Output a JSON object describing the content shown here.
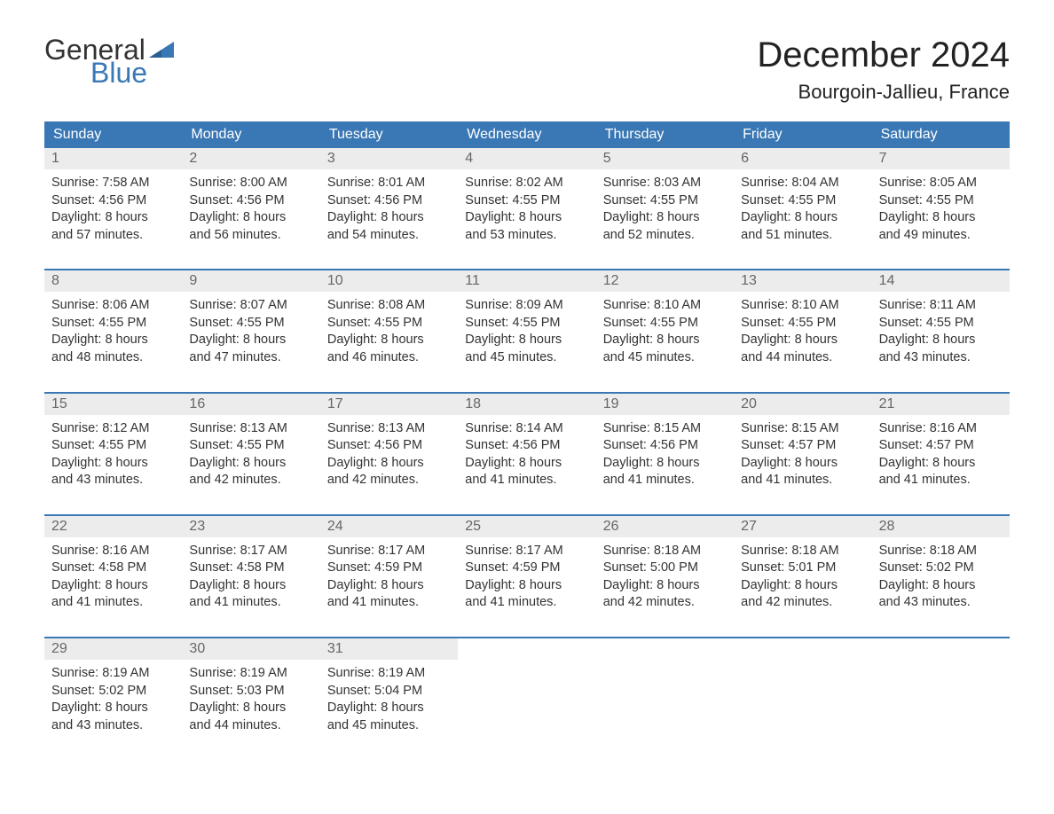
{
  "logo": {
    "text_top": "General",
    "text_bottom": "Blue",
    "flag_color": "#3a78b5"
  },
  "title": "December 2024",
  "location": "Bourgoin-Jallieu, France",
  "colors": {
    "header_bg": "#3a78b5",
    "header_text": "#ffffff",
    "daynum_bg": "#ececec",
    "daynum_text": "#666666",
    "body_text": "#333333",
    "week_border": "#3a78b5"
  },
  "day_names": [
    "Sunday",
    "Monday",
    "Tuesday",
    "Wednesday",
    "Thursday",
    "Friday",
    "Saturday"
  ],
  "weeks": [
    [
      {
        "n": "1",
        "sr": "Sunrise: 7:58 AM",
        "ss": "Sunset: 4:56 PM",
        "d1": "Daylight: 8 hours",
        "d2": "and 57 minutes."
      },
      {
        "n": "2",
        "sr": "Sunrise: 8:00 AM",
        "ss": "Sunset: 4:56 PM",
        "d1": "Daylight: 8 hours",
        "d2": "and 56 minutes."
      },
      {
        "n": "3",
        "sr": "Sunrise: 8:01 AM",
        "ss": "Sunset: 4:56 PM",
        "d1": "Daylight: 8 hours",
        "d2": "and 54 minutes."
      },
      {
        "n": "4",
        "sr": "Sunrise: 8:02 AM",
        "ss": "Sunset: 4:55 PM",
        "d1": "Daylight: 8 hours",
        "d2": "and 53 minutes."
      },
      {
        "n": "5",
        "sr": "Sunrise: 8:03 AM",
        "ss": "Sunset: 4:55 PM",
        "d1": "Daylight: 8 hours",
        "d2": "and 52 minutes."
      },
      {
        "n": "6",
        "sr": "Sunrise: 8:04 AM",
        "ss": "Sunset: 4:55 PM",
        "d1": "Daylight: 8 hours",
        "d2": "and 51 minutes."
      },
      {
        "n": "7",
        "sr": "Sunrise: 8:05 AM",
        "ss": "Sunset: 4:55 PM",
        "d1": "Daylight: 8 hours",
        "d2": "and 49 minutes."
      }
    ],
    [
      {
        "n": "8",
        "sr": "Sunrise: 8:06 AM",
        "ss": "Sunset: 4:55 PM",
        "d1": "Daylight: 8 hours",
        "d2": "and 48 minutes."
      },
      {
        "n": "9",
        "sr": "Sunrise: 8:07 AM",
        "ss": "Sunset: 4:55 PM",
        "d1": "Daylight: 8 hours",
        "d2": "and 47 minutes."
      },
      {
        "n": "10",
        "sr": "Sunrise: 8:08 AM",
        "ss": "Sunset: 4:55 PM",
        "d1": "Daylight: 8 hours",
        "d2": "and 46 minutes."
      },
      {
        "n": "11",
        "sr": "Sunrise: 8:09 AM",
        "ss": "Sunset: 4:55 PM",
        "d1": "Daylight: 8 hours",
        "d2": "and 45 minutes."
      },
      {
        "n": "12",
        "sr": "Sunrise: 8:10 AM",
        "ss": "Sunset: 4:55 PM",
        "d1": "Daylight: 8 hours",
        "d2": "and 45 minutes."
      },
      {
        "n": "13",
        "sr": "Sunrise: 8:10 AM",
        "ss": "Sunset: 4:55 PM",
        "d1": "Daylight: 8 hours",
        "d2": "and 44 minutes."
      },
      {
        "n": "14",
        "sr": "Sunrise: 8:11 AM",
        "ss": "Sunset: 4:55 PM",
        "d1": "Daylight: 8 hours",
        "d2": "and 43 minutes."
      }
    ],
    [
      {
        "n": "15",
        "sr": "Sunrise: 8:12 AM",
        "ss": "Sunset: 4:55 PM",
        "d1": "Daylight: 8 hours",
        "d2": "and 43 minutes."
      },
      {
        "n": "16",
        "sr": "Sunrise: 8:13 AM",
        "ss": "Sunset: 4:55 PM",
        "d1": "Daylight: 8 hours",
        "d2": "and 42 minutes."
      },
      {
        "n": "17",
        "sr": "Sunrise: 8:13 AM",
        "ss": "Sunset: 4:56 PM",
        "d1": "Daylight: 8 hours",
        "d2": "and 42 minutes."
      },
      {
        "n": "18",
        "sr": "Sunrise: 8:14 AM",
        "ss": "Sunset: 4:56 PM",
        "d1": "Daylight: 8 hours",
        "d2": "and 41 minutes."
      },
      {
        "n": "19",
        "sr": "Sunrise: 8:15 AM",
        "ss": "Sunset: 4:56 PM",
        "d1": "Daylight: 8 hours",
        "d2": "and 41 minutes."
      },
      {
        "n": "20",
        "sr": "Sunrise: 8:15 AM",
        "ss": "Sunset: 4:57 PM",
        "d1": "Daylight: 8 hours",
        "d2": "and 41 minutes."
      },
      {
        "n": "21",
        "sr": "Sunrise: 8:16 AM",
        "ss": "Sunset: 4:57 PM",
        "d1": "Daylight: 8 hours",
        "d2": "and 41 minutes."
      }
    ],
    [
      {
        "n": "22",
        "sr": "Sunrise: 8:16 AM",
        "ss": "Sunset: 4:58 PM",
        "d1": "Daylight: 8 hours",
        "d2": "and 41 minutes."
      },
      {
        "n": "23",
        "sr": "Sunrise: 8:17 AM",
        "ss": "Sunset: 4:58 PM",
        "d1": "Daylight: 8 hours",
        "d2": "and 41 minutes."
      },
      {
        "n": "24",
        "sr": "Sunrise: 8:17 AM",
        "ss": "Sunset: 4:59 PM",
        "d1": "Daylight: 8 hours",
        "d2": "and 41 minutes."
      },
      {
        "n": "25",
        "sr": "Sunrise: 8:17 AM",
        "ss": "Sunset: 4:59 PM",
        "d1": "Daylight: 8 hours",
        "d2": "and 41 minutes."
      },
      {
        "n": "26",
        "sr": "Sunrise: 8:18 AM",
        "ss": "Sunset: 5:00 PM",
        "d1": "Daylight: 8 hours",
        "d2": "and 42 minutes."
      },
      {
        "n": "27",
        "sr": "Sunrise: 8:18 AM",
        "ss": "Sunset: 5:01 PM",
        "d1": "Daylight: 8 hours",
        "d2": "and 42 minutes."
      },
      {
        "n": "28",
        "sr": "Sunrise: 8:18 AM",
        "ss": "Sunset: 5:02 PM",
        "d1": "Daylight: 8 hours",
        "d2": "and 43 minutes."
      }
    ],
    [
      {
        "n": "29",
        "sr": "Sunrise: 8:19 AM",
        "ss": "Sunset: 5:02 PM",
        "d1": "Daylight: 8 hours",
        "d2": "and 43 minutes."
      },
      {
        "n": "30",
        "sr": "Sunrise: 8:19 AM",
        "ss": "Sunset: 5:03 PM",
        "d1": "Daylight: 8 hours",
        "d2": "and 44 minutes."
      },
      {
        "n": "31",
        "sr": "Sunrise: 8:19 AM",
        "ss": "Sunset: 5:04 PM",
        "d1": "Daylight: 8 hours",
        "d2": "and 45 minutes."
      },
      null,
      null,
      null,
      null
    ]
  ]
}
